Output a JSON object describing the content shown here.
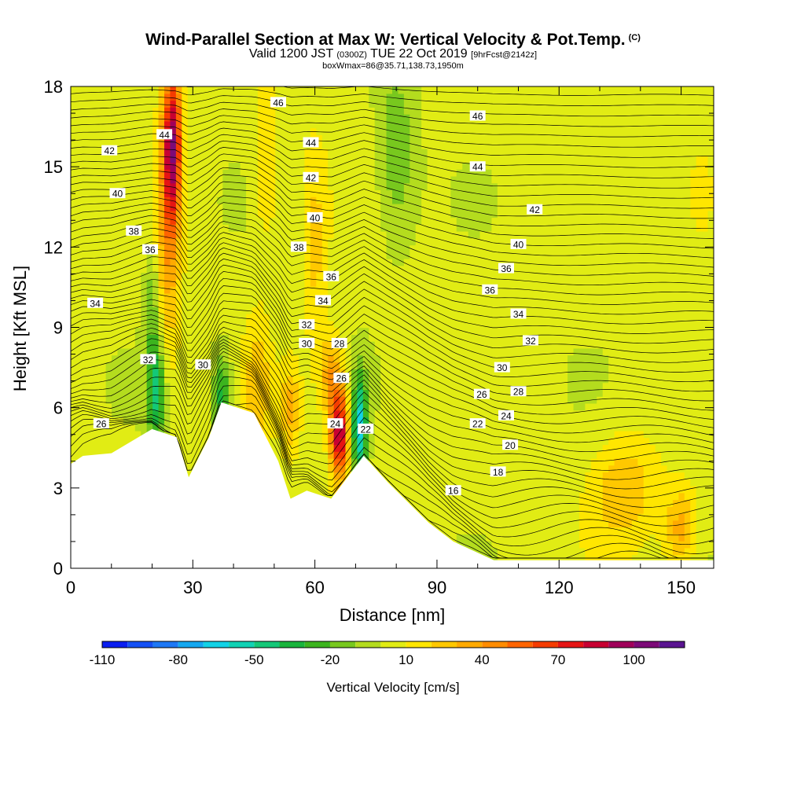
{
  "chart_data": {
    "type": "heatmap",
    "title": "Wind-Parallel Section at Max W: Vertical Velocity & Pot.Temp.",
    "title_tag": "(C)",
    "subtitle": {
      "prefix": "Valid 1200 JST",
      "zulu": "(0300Z)",
      "date": "TUE 22 Oct 2019",
      "forecast": "[9hrFcst@2142z]"
    },
    "footnote": "boxWmax=86@35.71,138.73,1950m",
    "xlabel": "Distance [nm]",
    "ylabel": "Height [Kft MSL]",
    "xlim": [
      0,
      158
    ],
    "ylim": [
      0,
      18
    ],
    "x_ticks": [
      0,
      30,
      60,
      90,
      120,
      150
    ],
    "y_ticks": [
      0,
      3,
      6,
      9,
      12,
      15,
      18
    ],
    "colorbar": {
      "label": "Vertical Velocity [cm/s]",
      "tick_labels": [
        "-110",
        "-80",
        "-50",
        "-20",
        "10",
        "40",
        "70",
        "100"
      ],
      "tick_values": [
        -110,
        -80,
        -50,
        -20,
        10,
        40,
        70,
        100
      ],
      "bins": [
        {
          "from": -110,
          "to": -100,
          "color": "#0a1ef0"
        },
        {
          "from": -100,
          "to": -90,
          "color": "#1450f5"
        },
        {
          "from": -90,
          "to": -80,
          "color": "#1e78f5"
        },
        {
          "from": -80,
          "to": -70,
          "color": "#14a8f0"
        },
        {
          "from": -70,
          "to": -60,
          "color": "#12d2e6"
        },
        {
          "from": -60,
          "to": -50,
          "color": "#10d2b4"
        },
        {
          "from": -50,
          "to": -40,
          "color": "#14c878"
        },
        {
          "from": -40,
          "to": -30,
          "color": "#19b43c"
        },
        {
          "from": -30,
          "to": -20,
          "color": "#3cb41e"
        },
        {
          "from": -20,
          "to": -10,
          "color": "#78c81e"
        },
        {
          "from": -10,
          "to": 0,
          "color": "#b4dc1e"
        },
        {
          "from": 0,
          "to": 10,
          "color": "#e1ec14"
        },
        {
          "from": 10,
          "to": 20,
          "color": "#ffe600"
        },
        {
          "from": 20,
          "to": 30,
          "color": "#ffc800"
        },
        {
          "from": 30,
          "to": 40,
          "color": "#ffaa00"
        },
        {
          "from": 40,
          "to": 50,
          "color": "#ff8c00"
        },
        {
          "from": 50,
          "to": 60,
          "color": "#ff6400"
        },
        {
          "from": 60,
          "to": 70,
          "color": "#f53c00"
        },
        {
          "from": 70,
          "to": 80,
          "color": "#e61414"
        },
        {
          "from": 80,
          "to": 90,
          "color": "#c80032"
        },
        {
          "from": 90,
          "to": 100,
          "color": "#a0005a"
        },
        {
          "from": 100,
          "to": 110,
          "color": "#7d0a78"
        },
        {
          "from": 110,
          "to": 120,
          "color": "#5a1491"
        }
      ]
    },
    "terrain_profile_kft": [
      [
        0,
        3.9
      ],
      [
        3,
        4.2
      ],
      [
        10,
        4.3
      ],
      [
        20,
        5.2
      ],
      [
        26,
        4.9
      ],
      [
        29,
        3.4
      ],
      [
        34,
        4.9
      ],
      [
        37,
        6.2
      ],
      [
        45,
        5.8
      ],
      [
        51,
        4.0
      ],
      [
        54,
        2.6
      ],
      [
        58,
        2.9
      ],
      [
        64,
        2.6
      ],
      [
        70,
        3.8
      ],
      [
        72,
        4.2
      ],
      [
        78,
        3.2
      ],
      [
        84,
        2.3
      ],
      [
        88,
        1.7
      ],
      [
        94,
        1.0
      ],
      [
        104,
        0.3
      ],
      [
        158,
        0.3
      ]
    ],
    "velocity_features": [
      {
        "x": 25,
        "y": 16,
        "sx": 2.2,
        "sy": 2.8,
        "w": 80
      },
      {
        "x": 24,
        "y": 12.5,
        "sx": 3,
        "sy": 4.5,
        "w": 35
      },
      {
        "x": 66,
        "y": 5.0,
        "sx": 2.2,
        "sy": 1.6,
        "w": 90
      },
      {
        "x": 64,
        "y": 7.2,
        "sx": 3,
        "sy": 1.5,
        "w": 35
      },
      {
        "x": 71,
        "y": 5.3,
        "sx": 1.8,
        "sy": 1.9,
        "w": -65
      },
      {
        "x": 21,
        "y": 6.5,
        "sx": 2.2,
        "sy": 2.0,
        "w": -45
      },
      {
        "x": 20,
        "y": 10,
        "sx": 2,
        "sy": 2.5,
        "w": -22
      },
      {
        "x": 37,
        "y": 6.4,
        "sx": 2.4,
        "sy": 1.8,
        "w": -40
      },
      {
        "x": 46,
        "y": 6.8,
        "sx": 3,
        "sy": 2.5,
        "w": 22
      },
      {
        "x": 54,
        "y": 6.0,
        "sx": 2.5,
        "sy": 1.6,
        "w": 28
      },
      {
        "x": 80,
        "y": 15.5,
        "sx": 5,
        "sy": 3.5,
        "w": -22
      },
      {
        "x": 48,
        "y": 15,
        "sx": 3,
        "sy": 3,
        "w": 18
      },
      {
        "x": 60,
        "y": 12,
        "sx": 3,
        "sy": 4,
        "w": 18
      },
      {
        "x": 136,
        "y": 3,
        "sx": 8,
        "sy": 2,
        "w": 25
      },
      {
        "x": 150,
        "y": 1.5,
        "sx": 4,
        "sy": 1.5,
        "w": 32
      },
      {
        "x": 155,
        "y": 14,
        "sx": 5,
        "sy": 2.5,
        "w": 14
      }
    ],
    "isentrope_labels": [
      {
        "text": "46",
        "x": 51,
        "y": 17.4
      },
      {
        "text": "46",
        "x": 100,
        "y": 16.9
      },
      {
        "text": "44",
        "x": 23,
        "y": 16.2
      },
      {
        "text": "44",
        "x": 59,
        "y": 15.9
      },
      {
        "text": "44",
        "x": 100,
        "y": 15.0
      },
      {
        "text": "42",
        "x": 9.5,
        "y": 15.6
      },
      {
        "text": "42",
        "x": 59,
        "y": 14.6
      },
      {
        "text": "42",
        "x": 114,
        "y": 13.4
      },
      {
        "text": "40",
        "x": 11.5,
        "y": 14.0
      },
      {
        "text": "40",
        "x": 60,
        "y": 13.1
      },
      {
        "text": "40",
        "x": 110,
        "y": 12.1
      },
      {
        "text": "38",
        "x": 15.5,
        "y": 12.6
      },
      {
        "text": "38",
        "x": 56,
        "y": 12.0
      },
      {
        "text": "36",
        "x": 19.5,
        "y": 11.9
      },
      {
        "text": "36",
        "x": 64,
        "y": 10.9
      },
      {
        "text": "36",
        "x": 107,
        "y": 11.2
      },
      {
        "text": "36",
        "x": 103,
        "y": 10.4
      },
      {
        "text": "34",
        "x": 6,
        "y": 9.9
      },
      {
        "text": "34",
        "x": 62,
        "y": 10.0
      },
      {
        "text": "34",
        "x": 110,
        "y": 9.5
      },
      {
        "text": "32",
        "x": 58,
        "y": 9.1
      },
      {
        "text": "32",
        "x": 19,
        "y": 7.8
      },
      {
        "text": "32",
        "x": 113,
        "y": 8.5
      },
      {
        "text": "30",
        "x": 58,
        "y": 8.4
      },
      {
        "text": "30",
        "x": 32.5,
        "y": 7.6
      },
      {
        "text": "30",
        "x": 106,
        "y": 7.5
      },
      {
        "text": "28",
        "x": 66,
        "y": 8.4
      },
      {
        "text": "28",
        "x": 110,
        "y": 6.6
      },
      {
        "text": "26",
        "x": 66.5,
        "y": 7.1
      },
      {
        "text": "26",
        "x": 101,
        "y": 6.5
      },
      {
        "text": "26",
        "x": 7.5,
        "y": 5.4
      },
      {
        "text": "24",
        "x": 65,
        "y": 5.4
      },
      {
        "text": "24",
        "x": 107,
        "y": 5.7
      },
      {
        "text": "22",
        "x": 72.5,
        "y": 5.2
      },
      {
        "text": "22",
        "x": 100,
        "y": 5.4
      },
      {
        "text": "20",
        "x": 108,
        "y": 4.6
      },
      {
        "text": "18",
        "x": 105,
        "y": 3.6
      },
      {
        "text": "16",
        "x": 94,
        "y": 2.9
      }
    ]
  }
}
